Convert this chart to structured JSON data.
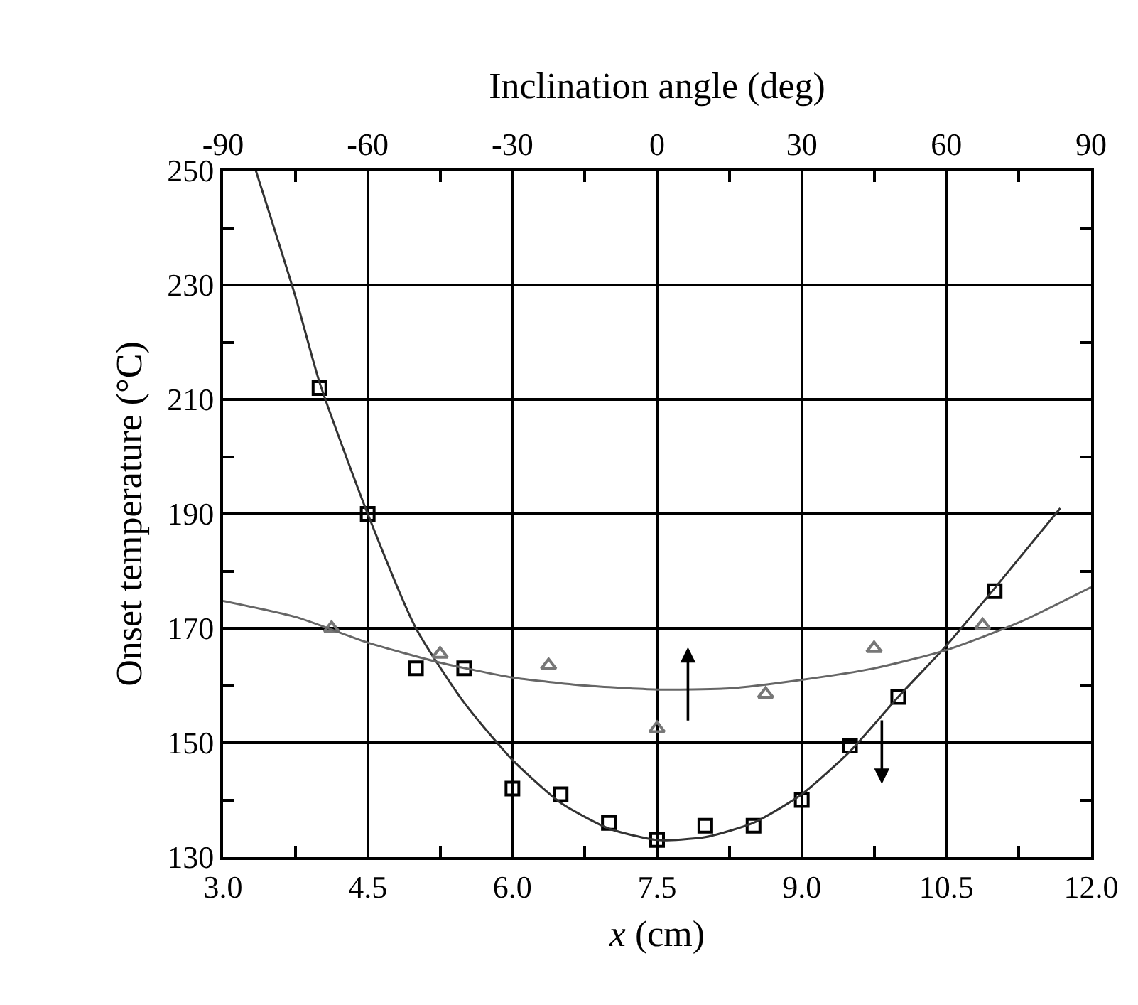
{
  "chart_data": {
    "type": "scatter",
    "xlabel": "x (cm)",
    "ylabel": "Onset temperature (°C)",
    "x2label": "Inclination angle (deg)",
    "xlim": [
      3.0,
      12.0
    ],
    "xticks": [
      {
        "value": 3,
        "label": "3.0"
      },
      {
        "value": 3.75,
        "label": null
      },
      {
        "value": 4.5,
        "label": "4.5"
      },
      {
        "value": 5.25,
        "label": null
      },
      {
        "value": 6,
        "label": "6.0"
      },
      {
        "value": 6.75,
        "label": null
      },
      {
        "value": 7.5,
        "label": "7.5"
      },
      {
        "value": 8.25,
        "label": null
      },
      {
        "value": 9,
        "label": "9.0"
      },
      {
        "value": 9.75,
        "label": null
      },
      {
        "value": 10.5,
        "label": "10.5"
      },
      {
        "value": 11.25,
        "label": null
      },
      {
        "value": 12,
        "label": "12.0"
      }
    ],
    "x2lim": [
      -90,
      90
    ],
    "x2ticks": [
      -90,
      {
        "value": -75,
        "label": null
      },
      -60,
      {
        "value": -45,
        "label": null
      },
      -30,
      {
        "value": -15,
        "label": null
      },
      0,
      {
        "value": 15,
        "label": null
      },
      30,
      {
        "value": 45,
        "label": null
      },
      60,
      {
        "value": 75,
        "label": null
      },
      90
    ],
    "ylim": [
      130,
      250
    ],
    "yticks": [
      130,
      {
        "value": 140,
        "label": null
      },
      150,
      {
        "value": 160,
        "label": null
      },
      170,
      {
        "value": 180,
        "label": null
      },
      190,
      {
        "value": 200,
        "label": null
      },
      210,
      {
        "value": 220,
        "label": null
      },
      230,
      {
        "value": 240,
        "label": null
      },
      250
    ],
    "grid": true,
    "series": [
      {
        "marker": "square",
        "color": "#000000",
        "x": [
          4.0,
          4.5,
          5.0,
          5.5,
          6.0,
          6.5,
          7.0,
          7.5,
          8.0,
          8.5,
          9.0,
          9.5,
          10.0,
          11.0
        ],
        "values": [
          212,
          190,
          163,
          163,
          142,
          141,
          136,
          133,
          135.5,
          135.5,
          140,
          149.5,
          158,
          176.5
        ]
      },
      {
        "type": "line",
        "marker": "none",
        "line_style": "solid",
        "color": "#333333",
        "x": [
          3.34,
          3.75,
          4.0,
          4.5,
          5.0,
          5.5,
          6.0,
          6.5,
          7.0,
          7.5,
          8.0,
          8.5,
          9.0,
          9.5,
          10.0,
          10.5,
          11.0,
          11.68
        ],
        "values": [
          250,
          228,
          213,
          190,
          170,
          157,
          147,
          139.5,
          135,
          133,
          133.5,
          136,
          141,
          148.5,
          158,
          167,
          177,
          191
        ]
      },
      {
        "marker": "triangle",
        "axis": "x2",
        "color": "#777777",
        "x": [
          -67.5,
          -45,
          -22.5,
          0,
          22.5,
          45,
          67.5
        ],
        "values": [
          170,
          165.5,
          163.5,
          152.5,
          158.5,
          166.5,
          170.5
        ]
      },
      {
        "type": "line",
        "marker": "none",
        "line_style": "solid",
        "axis": "x2",
        "color": "#666666",
        "x": [
          -90,
          -75,
          -60,
          -45,
          -30,
          -15,
          0,
          15,
          30,
          45,
          60,
          75,
          90
        ],
        "values": [
          174.8,
          172,
          167.5,
          164,
          161.4,
          160,
          159.3,
          159.5,
          161,
          163,
          166.2,
          171,
          177.2
        ]
      }
    ]
  }
}
